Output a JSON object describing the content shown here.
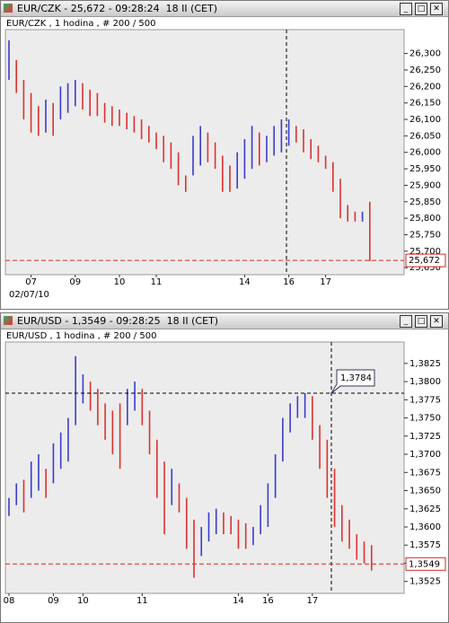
{
  "windows": [
    {
      "title": "EUR/CZK - 25,672 - 09:28:24  18 II (CET)",
      "chart_data": {
        "type": "ohlc",
        "title": "EUR/CZK , 1 hodina , # 200 / 500",
        "date_label": "02/07/10",
        "categories": [
          null,
          null,
          null,
          "07",
          null,
          null,
          null,
          null,
          null,
          "09",
          null,
          null,
          null,
          null,
          null,
          "10",
          null,
          null,
          null,
          null,
          "11",
          null,
          null,
          null,
          null,
          null,
          null,
          null,
          null,
          null,
          null,
          null,
          "14",
          null,
          null,
          null,
          null,
          null,
          "16",
          null,
          null,
          null,
          null,
          "17",
          null,
          null,
          null,
          null,
          null,
          null
        ],
        "series": [
          {
            "name": "High",
            "values": [
              26.34,
              26.28,
              26.22,
              26.18,
              26.14,
              26.16,
              26.15,
              26.2,
              26.21,
              26.22,
              26.21,
              26.19,
              26.18,
              26.15,
              26.14,
              26.13,
              26.12,
              26.11,
              26.1,
              26.08,
              26.06,
              26.05,
              26.03,
              26.0,
              25.93,
              26.05,
              26.08,
              26.06,
              26.03,
              25.99,
              25.96,
              26.0,
              26.04,
              26.08,
              26.06,
              26.05,
              26.08,
              26.1,
              26.1,
              26.08,
              26.07,
              26.04,
              26.02,
              25.99,
              25.97,
              25.92,
              25.84,
              25.82,
              25.82,
              25.85
            ]
          },
          {
            "name": "Low",
            "values": [
              26.22,
              26.18,
              26.1,
              26.06,
              26.05,
              26.06,
              26.05,
              26.1,
              26.12,
              26.14,
              26.13,
              26.11,
              26.11,
              26.09,
              26.08,
              26.08,
              26.07,
              26.06,
              26.04,
              26.03,
              26.01,
              25.97,
              25.95,
              25.9,
              25.88,
              25.93,
              25.96,
              25.97,
              25.95,
              25.88,
              25.88,
              25.89,
              25.92,
              25.95,
              25.96,
              25.97,
              25.99,
              26.0,
              26.02,
              26.03,
              26.0,
              25.98,
              25.97,
              25.95,
              25.88,
              25.8,
              25.79,
              25.79,
              25.79,
              25.67
            ]
          }
        ],
        "up_color": "#3a3ad0",
        "down_color": "#e03030",
        "ylim": [
          25.645,
          26.367
        ],
        "yticks": [
          {
            "value": 25.65,
            "label": "25,650"
          },
          {
            "value": 25.7,
            "label": "25,700"
          },
          {
            "value": 25.75,
            "label": "25,750"
          },
          {
            "value": 25.8,
            "label": "25,800"
          },
          {
            "value": 25.85,
            "label": "25,850"
          },
          {
            "value": 25.9,
            "label": "25,900"
          },
          {
            "value": 25.95,
            "label": "25,950"
          },
          {
            "value": 26.0,
            "label": "26,000"
          },
          {
            "value": 26.05,
            "label": "26,050"
          },
          {
            "value": 26.1,
            "label": "26,100"
          },
          {
            "value": 26.15,
            "label": "26,150"
          },
          {
            "value": 26.2,
            "label": "26,200"
          },
          {
            "value": 26.25,
            "label": "26,250"
          },
          {
            "value": 26.3,
            "label": "26,300"
          }
        ],
        "last": {
          "value": 25.672,
          "label": "25,672"
        }
      }
    },
    {
      "title": "EUR/USD - 1,3549 - 09:28:25  18 II (CET)",
      "chart_data": {
        "type": "ohlc",
        "title": "EUR/USD , 1 hodina , # 200 / 500",
        "categories": [
          "08",
          null,
          null,
          null,
          null,
          null,
          "09",
          null,
          null,
          null,
          "10",
          null,
          null,
          null,
          null,
          null,
          null,
          null,
          "11",
          null,
          null,
          null,
          null,
          null,
          null,
          null,
          null,
          null,
          null,
          null,
          null,
          "14",
          null,
          null,
          null,
          "16",
          null,
          null,
          null,
          null,
          null,
          "17",
          null,
          null,
          null,
          null,
          null,
          null,
          null,
          null
        ],
        "series": [
          {
            "name": "High",
            "values": [
              1.364,
              1.366,
              1.3665,
              1.369,
              1.37,
              1.368,
              1.3715,
              1.373,
              1.375,
              1.3835,
              1.381,
              1.38,
              1.379,
              1.377,
              1.376,
              1.377,
              1.379,
              1.38,
              1.379,
              1.376,
              1.372,
              1.369,
              1.368,
              1.366,
              1.364,
              1.361,
              1.36,
              1.362,
              1.3625,
              1.362,
              1.3615,
              1.361,
              1.3605,
              1.36,
              1.363,
              1.366,
              1.37,
              1.375,
              1.377,
              1.378,
              1.3784,
              1.378,
              1.374,
              1.372,
              1.368,
              1.363,
              1.361,
              1.359,
              1.358,
              1.3575
            ]
          },
          {
            "name": "Low",
            "values": [
              1.3615,
              1.363,
              1.362,
              1.364,
              1.365,
              1.364,
              1.366,
              1.368,
              1.369,
              1.374,
              1.377,
              1.376,
              1.374,
              1.372,
              1.37,
              1.368,
              1.374,
              1.376,
              1.374,
              1.37,
              1.364,
              1.359,
              1.363,
              1.362,
              1.357,
              1.353,
              1.356,
              1.358,
              1.359,
              1.359,
              1.359,
              1.357,
              1.357,
              1.3575,
              1.359,
              1.36,
              1.364,
              1.369,
              1.373,
              1.375,
              1.375,
              1.372,
              1.368,
              1.364,
              1.36,
              1.358,
              1.357,
              1.3555,
              1.355,
              1.354
            ]
          }
        ],
        "up_color": "#3a3ad0",
        "down_color": "#e03030",
        "ylim": [
          1.3516,
          1.3852
        ],
        "yticks": [
          {
            "value": 1.3525,
            "label": "1,3525"
          },
          {
            "value": 1.355,
            "label": "1,3550"
          },
          {
            "value": 1.3575,
            "label": "1,3575"
          },
          {
            "value": 1.36,
            "label": "1,3600"
          },
          {
            "value": 1.3625,
            "label": "1,3625"
          },
          {
            "value": 1.365,
            "label": "1,3650"
          },
          {
            "value": 1.3675,
            "label": "1,3675"
          },
          {
            "value": 1.37,
            "label": "1,3700"
          },
          {
            "value": 1.3725,
            "label": "1,3725"
          },
          {
            "value": 1.375,
            "label": "1,3750"
          },
          {
            "value": 1.3775,
            "label": "1,3775"
          },
          {
            "value": 1.38,
            "label": "1,3800"
          },
          {
            "value": 1.3825,
            "label": "1,3825"
          }
        ],
        "cursor": {
          "value": 1.3784,
          "label": "1,3784"
        },
        "last": {
          "value": 1.3549,
          "label": "1,3549"
        }
      }
    }
  ]
}
